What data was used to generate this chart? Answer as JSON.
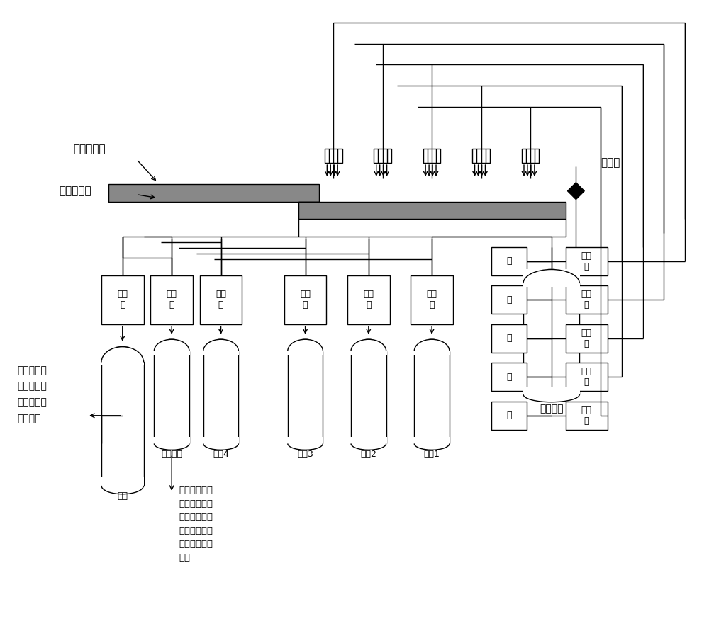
{
  "bg_color": "#ffffff",
  "label_acid_cotton": "酸棉混合物",
  "label_screen": "离心机筛板",
  "label_tap_water": "自来水",
  "label_displacement_tank": "置换水槽",
  "label_waste_acid": "废酸",
  "label_wash_waste_acid": "洗涤废酸",
  "label_dilute4": "稀酸4",
  "label_dilute3": "稀酸3",
  "label_dilute2": "稀酸2",
  "label_dilute1": "稀酸1",
  "label_left_text": "高浓度废酸\n循环用于供\n硝化反应的\n混酸配制",
  "label_center_text": "洗涤废酸送废\n酸处理硝酸、\n硫酸分离提浓\n后回用于混酸\n配制时所需原\n料酸",
  "filter_label": "过滤\n器",
  "pump_label": "泵",
  "hx_label": "换热\n器"
}
